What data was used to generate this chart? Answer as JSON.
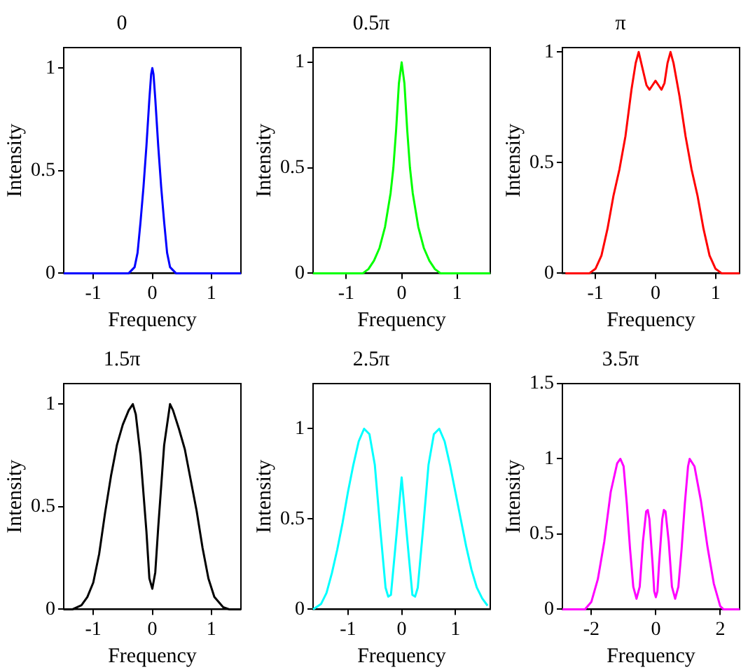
{
  "chart_data": [
    {
      "type": "line",
      "title": "0",
      "xlabel": "Frequency",
      "ylabel": "Intensity",
      "grid": false,
      "xlim": [
        -1.5,
        1.5
      ],
      "ylim": [
        0,
        1.1
      ],
      "xticks": [
        -1,
        0,
        1
      ],
      "yticks": [
        0,
        0.5,
        1
      ],
      "x": [
        -1.5,
        -0.4,
        -0.3,
        -0.25,
        -0.2,
        -0.15,
        -0.1,
        -0.05,
        -0.02,
        0,
        0.02,
        0.05,
        0.1,
        0.15,
        0.2,
        0.25,
        0.3,
        0.4,
        1.5
      ],
      "series": [
        {
          "color": "#0000ff",
          "values": [
            0,
            0,
            0.03,
            0.1,
            0.25,
            0.42,
            0.62,
            0.85,
            0.97,
            1,
            0.97,
            0.85,
            0.62,
            0.42,
            0.25,
            0.1,
            0.03,
            0,
            0
          ]
        }
      ]
    },
    {
      "type": "line",
      "title": "0.5π",
      "xlabel": "Frequency",
      "ylabel": "Intensity",
      "grid": false,
      "xlim": [
        -1.6,
        1.6
      ],
      "ylim": [
        0,
        1.07
      ],
      "xticks": [
        -1,
        0,
        1
      ],
      "yticks": [
        0,
        0.5,
        1
      ],
      "x": [
        -1.6,
        -0.7,
        -0.6,
        -0.5,
        -0.4,
        -0.3,
        -0.2,
        -0.15,
        -0.1,
        -0.05,
        0,
        0.05,
        0.1,
        0.15,
        0.2,
        0.3,
        0.4,
        0.5,
        0.6,
        0.7,
        1.6
      ],
      "series": [
        {
          "color": "#00ff00",
          "values": [
            0,
            0,
            0.02,
            0.06,
            0.12,
            0.22,
            0.38,
            0.5,
            0.68,
            0.9,
            1,
            0.9,
            0.68,
            0.5,
            0.38,
            0.22,
            0.12,
            0.06,
            0.02,
            0,
            0
          ]
        }
      ]
    },
    {
      "type": "line",
      "title": "π",
      "xlabel": "Frequency",
      "ylabel": "Intensity",
      "grid": false,
      "xlim": [
        -1.55,
        1.4
      ],
      "ylim": [
        0,
        1.02
      ],
      "xticks": [
        -1,
        0,
        1
      ],
      "yticks": [
        0,
        0.5,
        1
      ],
      "x": [
        -1.5,
        -1.1,
        -1,
        -0.9,
        -0.8,
        -0.7,
        -0.6,
        -0.5,
        -0.4,
        -0.33,
        -0.28,
        -0.22,
        -0.15,
        -0.1,
        -0.05,
        0,
        0.05,
        0.1,
        0.15,
        0.2,
        0.25,
        0.3,
        0.4,
        0.5,
        0.6,
        0.7,
        0.8,
        0.9,
        1,
        1.1,
        1.4
      ],
      "series": [
        {
          "color": "#ff0000",
          "values": [
            0,
            0,
            0.02,
            0.08,
            0.2,
            0.35,
            0.47,
            0.62,
            0.83,
            0.95,
            1,
            0.93,
            0.85,
            0.83,
            0.85,
            0.87,
            0.85,
            0.83,
            0.86,
            0.95,
            1,
            0.95,
            0.8,
            0.62,
            0.47,
            0.35,
            0.2,
            0.08,
            0.02,
            0,
            0
          ]
        }
      ]
    },
    {
      "type": "line",
      "title": "1.5π",
      "xlabel": "Frequency",
      "ylabel": "Intensity",
      "grid": false,
      "xlim": [
        -1.5,
        1.5
      ],
      "ylim": [
        0,
        1.1
      ],
      "xticks": [
        -1,
        0,
        1
      ],
      "yticks": [
        0,
        0.5,
        1
      ],
      "x": [
        -1.5,
        -1.35,
        -1.2,
        -1.1,
        -1,
        -0.9,
        -0.8,
        -0.7,
        -0.6,
        -0.5,
        -0.4,
        -0.33,
        -0.28,
        -0.2,
        -0.1,
        -0.05,
        0,
        0.05,
        0.1,
        0.2,
        0.3,
        0.35,
        0.45,
        0.55,
        0.65,
        0.75,
        0.85,
        0.95,
        1.05,
        1.2,
        1.3,
        1.5
      ],
      "series": [
        {
          "color": "#000000",
          "values": [
            0,
            0,
            0.02,
            0.06,
            0.13,
            0.27,
            0.47,
            0.65,
            0.8,
            0.9,
            0.97,
            1,
            0.95,
            0.75,
            0.38,
            0.15,
            0.1,
            0.18,
            0.4,
            0.8,
            1,
            0.97,
            0.88,
            0.78,
            0.63,
            0.48,
            0.3,
            0.15,
            0.06,
            0.01,
            0,
            0
          ]
        }
      ]
    },
    {
      "type": "line",
      "title": "2.5π",
      "xlabel": "Frequency",
      "ylabel": "Intensity",
      "grid": false,
      "xlim": [
        -1.65,
        1.65
      ],
      "ylim": [
        0,
        1.25
      ],
      "xticks": [
        -1,
        0,
        1
      ],
      "yticks": [
        0,
        0.5,
        1
      ],
      "x": [
        -1.65,
        -1.5,
        -1.4,
        -1.3,
        -1.2,
        -1.1,
        -1,
        -0.9,
        -0.8,
        -0.7,
        -0.6,
        -0.5,
        -0.4,
        -0.3,
        -0.25,
        -0.2,
        -0.1,
        0,
        0.1,
        0.2,
        0.25,
        0.3,
        0.4,
        0.5,
        0.6,
        0.7,
        0.8,
        0.9,
        1,
        1.1,
        1.2,
        1.3,
        1.4,
        1.5,
        1.6
      ],
      "series": [
        {
          "color": "#00ffff",
          "values": [
            0,
            0.03,
            0.09,
            0.2,
            0.33,
            0.48,
            0.65,
            0.8,
            0.93,
            1,
            0.97,
            0.8,
            0.45,
            0.12,
            0.07,
            0.08,
            0.4,
            0.73,
            0.4,
            0.08,
            0.07,
            0.12,
            0.45,
            0.8,
            0.97,
            1,
            0.93,
            0.8,
            0.65,
            0.5,
            0.35,
            0.22,
            0.12,
            0.06,
            0.02
          ]
        }
      ]
    },
    {
      "type": "line",
      "title": "3.5π",
      "xlabel": "Frequency",
      "ylabel": "Intensity",
      "grid": false,
      "xlim": [
        -2.9,
        2.6
      ],
      "ylim": [
        0,
        1.5
      ],
      "xticks": [
        -2,
        0,
        2
      ],
      "yticks": [
        0,
        0.5,
        1,
        1.5
      ],
      "x": [
        -2.9,
        -2.2,
        -2,
        -1.8,
        -1.6,
        -1.4,
        -1.2,
        -1.1,
        -1,
        -0.9,
        -0.8,
        -0.7,
        -0.6,
        -0.5,
        -0.4,
        -0.3,
        -0.25,
        -0.2,
        -0.1,
        -0.05,
        0,
        0.05,
        0.1,
        0.2,
        0.25,
        0.3,
        0.4,
        0.5,
        0.6,
        0.7,
        0.8,
        0.9,
        1,
        1.05,
        1.2,
        1.4,
        1.6,
        1.8,
        2,
        2.1,
        2.6
      ],
      "series": [
        {
          "color": "#ff00ff",
          "values": [
            0,
            0,
            0.05,
            0.2,
            0.45,
            0.78,
            0.97,
            1,
            0.95,
            0.7,
            0.4,
            0.15,
            0.07,
            0.15,
            0.45,
            0.65,
            0.66,
            0.6,
            0.3,
            0.12,
            0.08,
            0.12,
            0.3,
            0.6,
            0.66,
            0.65,
            0.45,
            0.15,
            0.07,
            0.15,
            0.4,
            0.7,
            0.95,
            1,
            0.95,
            0.72,
            0.42,
            0.17,
            0.02,
            0,
            0
          ]
        }
      ]
    }
  ]
}
